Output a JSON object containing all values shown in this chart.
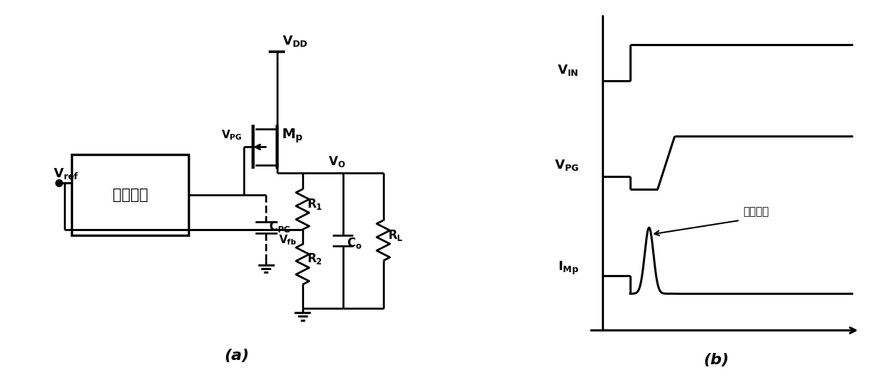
{
  "fig_width": 12.4,
  "fig_height": 5.39,
  "bg_color": "#ffffff",
  "line_color": "#000000",
  "line_width": 2.0,
  "label_a": "(a)",
  "label_b": "(b)",
  "circuit_box_label": "控制电路",
  "vref_label": "V",
  "vref_sub": "ref",
  "vdd_label": "V",
  "vdd_sub": "DD",
  "vpg_label": "V",
  "vpg_sub": "PG",
  "vo_label": "V",
  "vo_sub": "O",
  "vfb_label": "V",
  "vfb_sub": "fb",
  "mp_label": "M",
  "mp_sub": "p",
  "cpg_label": "C",
  "cpg_sub": "PG",
  "r1_label": "R",
  "r1_sub": "1",
  "r2_label": "R",
  "r2_sub": "2",
  "rl_label": "R",
  "rl_sub": "L",
  "co_label": "C",
  "co_sub": "o",
  "vin_label": "V",
  "vin_sub": "IN",
  "vpg2_label": "V",
  "vpg2_sub": "PG",
  "imp_label": "I",
  "imp_sub": "Mp",
  "surge_label": "浪涌电流"
}
